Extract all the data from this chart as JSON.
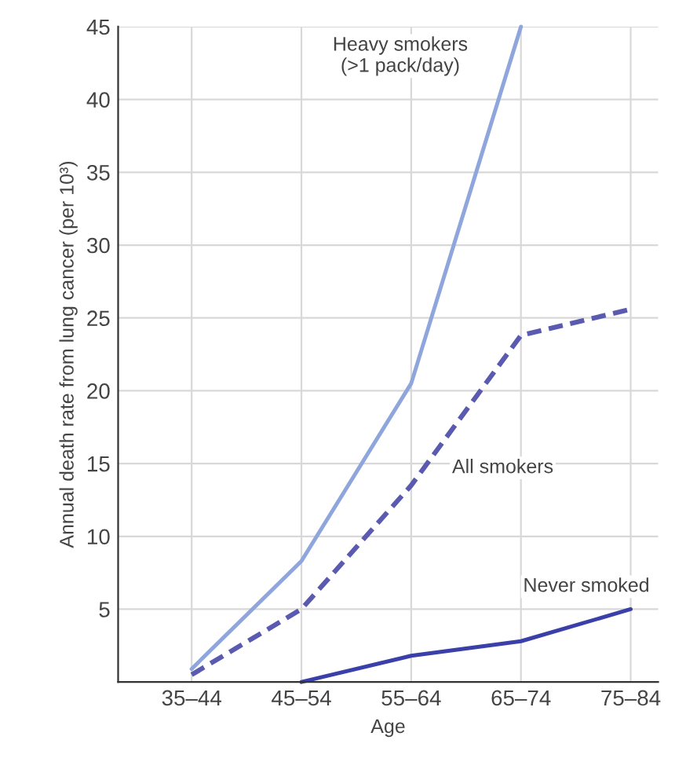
{
  "chart_data": {
    "type": "line",
    "xlabel": "Age",
    "ylabel": "Annual death rate from lung cancer (per 10³)",
    "categories": [
      "35–44",
      "45–54",
      "55–64",
      "65–74",
      "75–84"
    ],
    "ylim": [
      0,
      45
    ],
    "yticks": [
      5,
      10,
      15,
      20,
      25,
      30,
      35,
      40,
      45
    ],
    "grid": true,
    "legend": false,
    "marker": "none",
    "series": [
      {
        "name": "Heavy smokers\n(>1 pack/day)",
        "color": "#8fa6dc",
        "line_style": "solid",
        "values": [
          0.9,
          8.3,
          20.5,
          45,
          null
        ]
      },
      {
        "name": "All smokers",
        "color": "#5a5ab0",
        "line_style": "dashed",
        "values": [
          0.5,
          5,
          13.5,
          23.8,
          25.6
        ]
      },
      {
        "name": "Never smoked",
        "color": "#3b3fa8",
        "line_style": "solid",
        "values": [
          null,
          0,
          1.8,
          2.8,
          5
        ]
      }
    ]
  }
}
